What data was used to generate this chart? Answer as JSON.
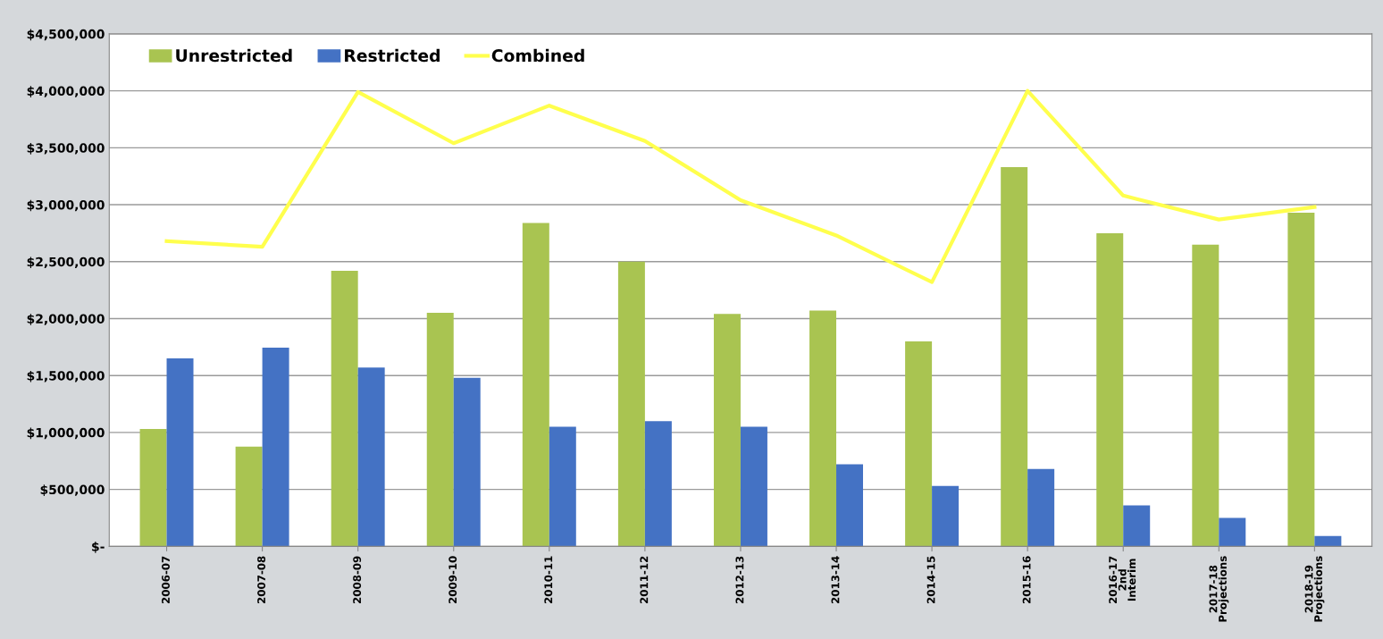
{
  "chart_data": {
    "type": "bar",
    "categories": [
      "2006-07",
      "2007-08",
      "2008-09",
      "2009-10",
      "2010-11",
      "2011-12",
      "2012-13",
      "2013-14",
      "2014-15",
      "2015-16",
      "2016-17\n2nd\nInterim",
      "2017-18\nProjections",
      "2018-19\nProjections"
    ],
    "series": [
      {
        "name": "Unrestricted",
        "color": "#a9c451",
        "values": [
          1030000,
          875000,
          2420000,
          2050000,
          2840000,
          2500000,
          2040000,
          2070000,
          1800000,
          3330000,
          2750000,
          2650000,
          2930000
        ]
      },
      {
        "name": "Restricted",
        "color": "#4472c4",
        "values": [
          1650000,
          1745000,
          1570000,
          1480000,
          1050000,
          1100000,
          1050000,
          720000,
          530000,
          680000,
          360000,
          250000,
          90000
        ]
      },
      {
        "name": "Combined",
        "type": "line",
        "color": "#ffff4d",
        "values": [
          2680000,
          2630000,
          3990000,
          3540000,
          3870000,
          3560000,
          3040000,
          2730000,
          2320000,
          4000000,
          3080000,
          2870000,
          2980000
        ]
      }
    ],
    "ylim": [
      0,
      4500000
    ],
    "yticks": [
      {
        "value": 0,
        "label": "$-"
      },
      {
        "value": 500000,
        "label": "$500,000"
      },
      {
        "value": 1000000,
        "label": "$1,000,000"
      },
      {
        "value": 1500000,
        "label": "$1,500,000"
      },
      {
        "value": 2000000,
        "label": "$2,000,000"
      },
      {
        "value": 2500000,
        "label": "$2,500,000"
      },
      {
        "value": 3000000,
        "label": "$3,000,000"
      },
      {
        "value": 3500000,
        "label": "$3,500,000"
      },
      {
        "value": 4000000,
        "label": "$4,000,000"
      },
      {
        "value": 4500000,
        "label": "$4,500,000"
      }
    ],
    "grid": "y",
    "legend": "top left",
    "marker": "none"
  }
}
